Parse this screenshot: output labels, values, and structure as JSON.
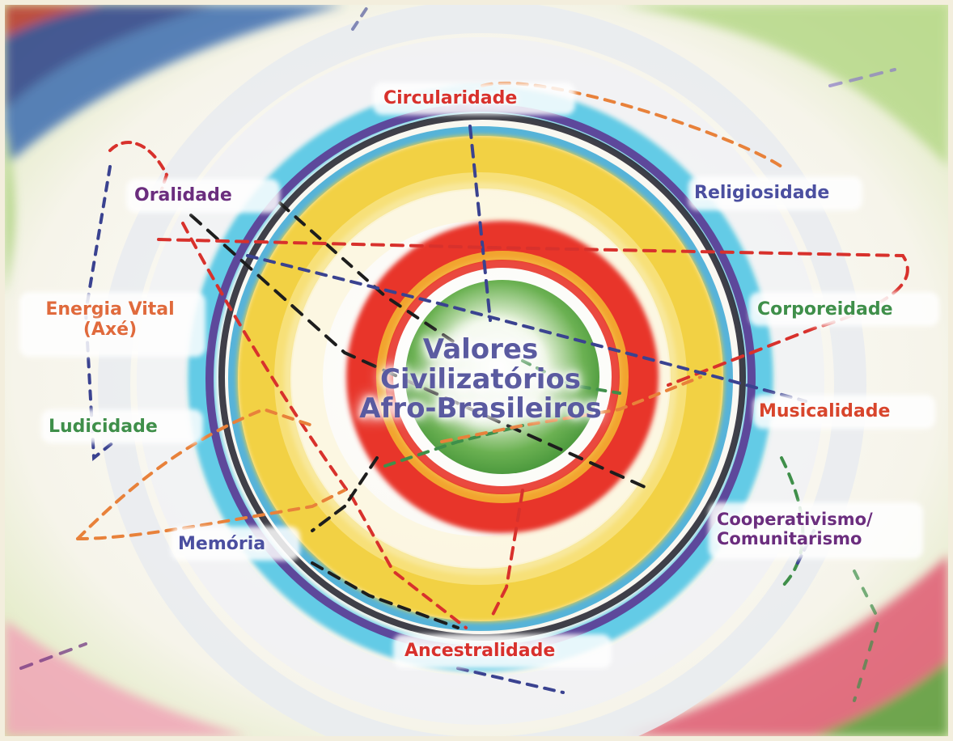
{
  "center": {
    "line1": "Valores",
    "line2": "Civilizatórios",
    "line3": "Afro-Brasileiros"
  },
  "values": {
    "circularidade": "Circularidade",
    "religiosidade": "Religiosidade",
    "oralidade": "Oralidade",
    "energia_vital_line1": "Energia Vital",
    "energia_vital_line2": "(Axé)",
    "corporeidade": "Corporeidade",
    "musicalidade": "Musicalidade",
    "ludicidade": "Ludicidade",
    "memoria": "Memória",
    "cooperativismo_line1": "Cooperativismo/",
    "cooperativismo_line2": "Comunitarismo",
    "ancestralidade": "Ancestralidade"
  },
  "colors": {
    "red": "#d8312c",
    "blue": "#4b4fa0",
    "purple": "#6b2d7e",
    "green": "#3f8f4a",
    "orange": "#e06a3c",
    "yellow": "#f2cf3a"
  }
}
